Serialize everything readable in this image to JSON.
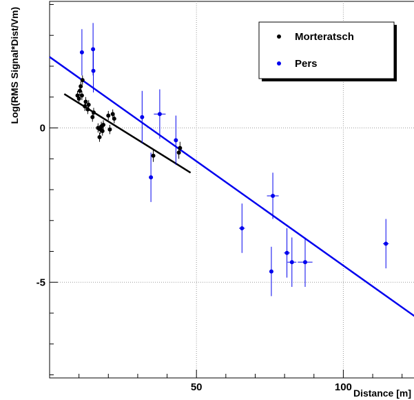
{
  "chart_data": {
    "type": "scatter",
    "xlabel": "Distance [m]",
    "ylabel": "Log(RMS Signal*Dist/Vm)",
    "xlim": [
      0,
      125
    ],
    "ylim": [
      -8.1,
      4.1
    ],
    "grid": true,
    "legend_position": "top-right",
    "x_ticks": [
      {
        "value": 50,
        "label": "50"
      },
      {
        "value": 100,
        "label": "100"
      }
    ],
    "y_ticks": [
      {
        "value": 0,
        "label": "0"
      },
      {
        "value": -5,
        "label": "-5"
      }
    ],
    "series": [
      {
        "name": "Morteratsch",
        "color": "#000000",
        "points": [
          {
            "x": 9.5,
            "y": 1.05,
            "err": 0.15,
            "xerr": 0.3
          },
          {
            "x": 10.0,
            "y": 0.95,
            "err": 0.15,
            "xerr": 0.3
          },
          {
            "x": 10.3,
            "y": 1.2,
            "err": 0.15,
            "xerr": 0.3
          },
          {
            "x": 10.6,
            "y": 1.35,
            "err": 0.15,
            "xerr": 0.3
          },
          {
            "x": 11.0,
            "y": 1.05,
            "err": 0.15,
            "xerr": 0.3
          },
          {
            "x": 11.2,
            "y": 1.55,
            "err": 0.15,
            "xerr": 0.3
          },
          {
            "x": 12.0,
            "y": 0.7,
            "err": 0.15,
            "xerr": 0.3
          },
          {
            "x": 12.3,
            "y": 0.85,
            "err": 0.15,
            "xerr": 0.3
          },
          {
            "x": 13.0,
            "y": 0.6,
            "err": 0.15,
            "xerr": 0.3
          },
          {
            "x": 13.3,
            "y": 0.75,
            "err": 0.15,
            "xerr": 0.3
          },
          {
            "x": 14.6,
            "y": 0.35,
            "err": 0.15,
            "xerr": 0.3
          },
          {
            "x": 15.0,
            "y": 0.5,
            "err": 0.15,
            "xerr": 0.3
          },
          {
            "x": 16.5,
            "y": 0.0,
            "err": 0.15,
            "xerr": 0.3
          },
          {
            "x": 17.0,
            "y": -0.3,
            "err": 0.15,
            "xerr": 0.3
          },
          {
            "x": 17.3,
            "y": -0.05,
            "err": 0.15,
            "xerr": 0.3
          },
          {
            "x": 17.6,
            "y": 0.05,
            "err": 0.15,
            "xerr": 0.3
          },
          {
            "x": 18.0,
            "y": -0.1,
            "err": 0.15,
            "xerr": 0.3
          },
          {
            "x": 18.3,
            "y": 0.1,
            "err": 0.15,
            "xerr": 0.3
          },
          {
            "x": 20.0,
            "y": 0.4,
            "err": 0.15,
            "xerr": 0.3
          },
          {
            "x": 20.5,
            "y": -0.05,
            "err": 0.15,
            "xerr": 0.3
          },
          {
            "x": 21.5,
            "y": 0.45,
            "err": 0.15,
            "xerr": 0.3
          },
          {
            "x": 22.0,
            "y": 0.3,
            "err": 0.15,
            "xerr": 0.3
          },
          {
            "x": 35.3,
            "y": -0.9,
            "err": 0.2,
            "xerr": 0.3
          },
          {
            "x": 44.0,
            "y": -0.8,
            "err": 0.2,
            "xerr": 0.3
          },
          {
            "x": 44.4,
            "y": -0.65,
            "err": 0.2,
            "xerr": 0.3
          }
        ],
        "fit_line": {
          "x1": 5.0,
          "y1": 1.1,
          "x2": 48.0,
          "y2": -1.45
        }
      },
      {
        "name": "Pers",
        "color": "#0000ee",
        "points": [
          {
            "x": 11.0,
            "y": 2.45,
            "err": 0.75,
            "xerr": 0.3
          },
          {
            "x": 14.8,
            "y": 2.55,
            "err": 0.85,
            "xerr": 0.3
          },
          {
            "x": 14.9,
            "y": 1.85,
            "err": 0.7,
            "xerr": 0.3
          },
          {
            "x": 31.5,
            "y": 0.35,
            "err": 0.85,
            "xerr": 0.3
          },
          {
            "x": 34.5,
            "y": -1.6,
            "err": 0.8,
            "xerr": 0.3
          },
          {
            "x": 37.5,
            "y": 0.45,
            "err": 0.8,
            "xerr": 2.0
          },
          {
            "x": 43.0,
            "y": -0.4,
            "err": 0.8,
            "xerr": 0.3
          },
          {
            "x": 65.5,
            "y": -3.25,
            "err": 0.8,
            "xerr": 1.0
          },
          {
            "x": 75.5,
            "y": -4.65,
            "err": 0.8,
            "xerr": 0.3
          },
          {
            "x": 76.0,
            "y": -2.2,
            "err": 0.75,
            "xerr": 2.0
          },
          {
            "x": 80.8,
            "y": -4.05,
            "err": 0.8,
            "xerr": 1.0
          },
          {
            "x": 82.5,
            "y": -4.35,
            "err": 0.8,
            "xerr": 1.5
          },
          {
            "x": 87.0,
            "y": -4.35,
            "err": 0.8,
            "xerr": 2.5
          },
          {
            "x": 114.5,
            "y": -3.75,
            "err": 0.8,
            "xerr": 1.0
          }
        ],
        "fit_line": {
          "x1": 0.0,
          "y1": 2.3,
          "x2": 125.0,
          "y2": -6.15
        }
      }
    ]
  }
}
